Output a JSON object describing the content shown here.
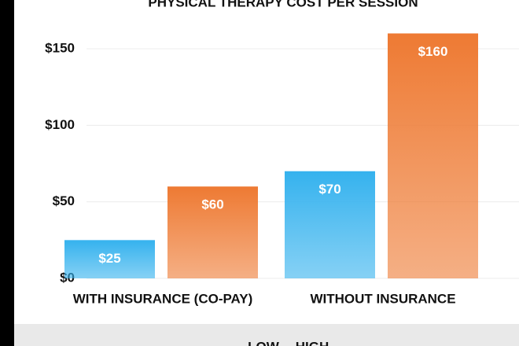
{
  "chart_data": {
    "type": "bar",
    "title": "PHYSICAL THERAPY COST PER SESSION",
    "categories": [
      "WITH INSURANCE (CO-PAY)",
      "WITHOUT INSURANCE"
    ],
    "series": [
      {
        "name": "LOW",
        "color": "#35b2ee",
        "values": [
          25,
          70
        ],
        "value_labels": [
          "$25",
          "$70"
        ]
      },
      {
        "name": "HIGH",
        "color": "#ee7a33",
        "values": [
          60,
          160
        ],
        "value_labels": [
          "$60",
          "$160"
        ]
      }
    ],
    "ylim": [
      0,
      160
    ],
    "yticks": [
      {
        "value": 0,
        "label": "$0"
      },
      {
        "value": 50,
        "label": "$50"
      },
      {
        "value": 100,
        "label": "$100"
      },
      {
        "value": 150,
        "label": "$150"
      }
    ],
    "grid": true
  }
}
